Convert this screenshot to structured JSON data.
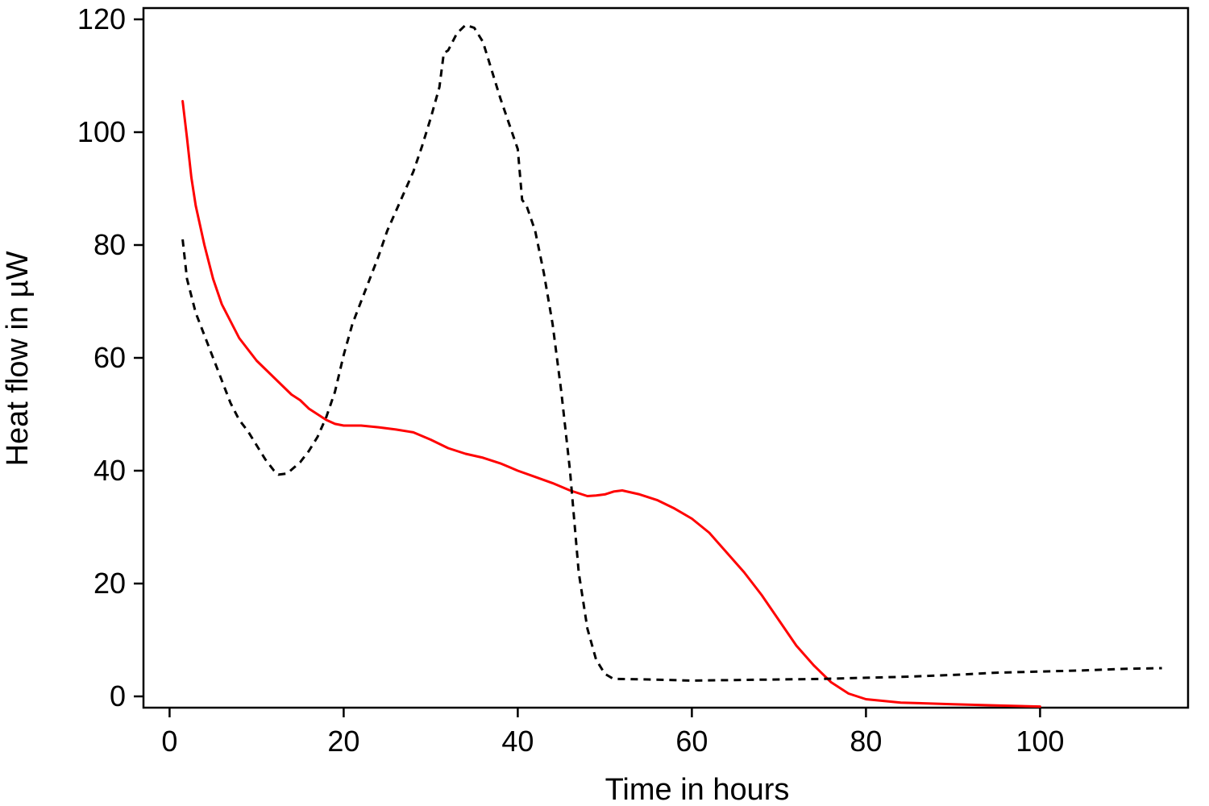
{
  "chart_data": {
    "type": "line",
    "title": "",
    "xlabel": "Time in hours",
    "ylabel": "Heat flow in µW",
    "xlim": [
      -3,
      117
    ],
    "ylim": [
      -2,
      122
    ],
    "xticks": [
      0,
      20,
      40,
      60,
      80,
      100
    ],
    "yticks": [
      0,
      20,
      40,
      60,
      80,
      100,
      120
    ],
    "grid": false,
    "legend": "none",
    "series": [
      {
        "color": "#ff0000",
        "dash": "solid",
        "points": [
          [
            1.5,
            105.5
          ],
          [
            2.0,
            99
          ],
          [
            2.5,
            92
          ],
          [
            3,
            87
          ],
          [
            4,
            80
          ],
          [
            5,
            74
          ],
          [
            6,
            69.5
          ],
          [
            7,
            66.5
          ],
          [
            8,
            63.5
          ],
          [
            9,
            61.5
          ],
          [
            10,
            59.5
          ],
          [
            11,
            58
          ],
          [
            12,
            56.5
          ],
          [
            13,
            55
          ],
          [
            14,
            53.5
          ],
          [
            15,
            52.5
          ],
          [
            16,
            51
          ],
          [
            17,
            50
          ],
          [
            18,
            49
          ],
          [
            19,
            48.3
          ],
          [
            20,
            48
          ],
          [
            22,
            48
          ],
          [
            24,
            47.7
          ],
          [
            26,
            47.3
          ],
          [
            28,
            46.8
          ],
          [
            30,
            45.5
          ],
          [
            32,
            44
          ],
          [
            34,
            43
          ],
          [
            36,
            42.3
          ],
          [
            38,
            41.3
          ],
          [
            40,
            40
          ],
          [
            42,
            38.9
          ],
          [
            44,
            37.8
          ],
          [
            46,
            36.5
          ],
          [
            48,
            35.5
          ],
          [
            49,
            35.6
          ],
          [
            50,
            35.8
          ],
          [
            51,
            36.3
          ],
          [
            52,
            36.5
          ],
          [
            54,
            35.8
          ],
          [
            56,
            34.8
          ],
          [
            58,
            33.3
          ],
          [
            60,
            31.5
          ],
          [
            62,
            29
          ],
          [
            64,
            25.5
          ],
          [
            66,
            22
          ],
          [
            68,
            18
          ],
          [
            70,
            13.5
          ],
          [
            72,
            9
          ],
          [
            74,
            5.5
          ],
          [
            76,
            2.5
          ],
          [
            78,
            0.5
          ],
          [
            80,
            -0.5
          ],
          [
            84,
            -1.1
          ],
          [
            90,
            -1.4
          ],
          [
            95,
            -1.6
          ],
          [
            100,
            -1.8
          ]
        ]
      },
      {
        "color": "#000000",
        "dash": "dashed",
        "points": [
          [
            1.5,
            81
          ],
          [
            2,
            74
          ],
          [
            3,
            68
          ],
          [
            4,
            64
          ],
          [
            5,
            60
          ],
          [
            6,
            56
          ],
          [
            7,
            52
          ],
          [
            8,
            49
          ],
          [
            9,
            47
          ],
          [
            10,
            44.5
          ],
          [
            11,
            42
          ],
          [
            12,
            40
          ],
          [
            12.5,
            39.3
          ],
          [
            13.5,
            39.5
          ],
          [
            15,
            41.5
          ],
          [
            16,
            43.5
          ],
          [
            17,
            46
          ],
          [
            18,
            49.5
          ],
          [
            19,
            54
          ],
          [
            20,
            60.5
          ],
          [
            21,
            66
          ],
          [
            22,
            70
          ],
          [
            23,
            74
          ],
          [
            24,
            78
          ],
          [
            25,
            82.5
          ],
          [
            26,
            86
          ],
          [
            27,
            89.5
          ],
          [
            28,
            93
          ],
          [
            29,
            97.5
          ],
          [
            30,
            102.5
          ],
          [
            31,
            108
          ],
          [
            31.5,
            114
          ],
          [
            32,
            114.5
          ],
          [
            33,
            117.5
          ],
          [
            34,
            119
          ],
          [
            35,
            118.5
          ],
          [
            36,
            116
          ],
          [
            37,
            111
          ],
          [
            38,
            106
          ],
          [
            39,
            101.5
          ],
          [
            40,
            97
          ],
          [
            40.5,
            88
          ],
          [
            41,
            87
          ],
          [
            42,
            82.5
          ],
          [
            43,
            75
          ],
          [
            44,
            66
          ],
          [
            45,
            54
          ],
          [
            46,
            40
          ],
          [
            47,
            22
          ],
          [
            48,
            12
          ],
          [
            49,
            6.5
          ],
          [
            50,
            4
          ],
          [
            51,
            3.1
          ],
          [
            55,
            3
          ],
          [
            60,
            2.8
          ],
          [
            65,
            2.9
          ],
          [
            70,
            3
          ],
          [
            75,
            3.1
          ],
          [
            80,
            3.3
          ],
          [
            85,
            3.5
          ],
          [
            90,
            3.8
          ],
          [
            95,
            4.2
          ],
          [
            100,
            4.4
          ],
          [
            105,
            4.6
          ],
          [
            110,
            4.9
          ],
          [
            114,
            5
          ]
        ]
      }
    ]
  }
}
